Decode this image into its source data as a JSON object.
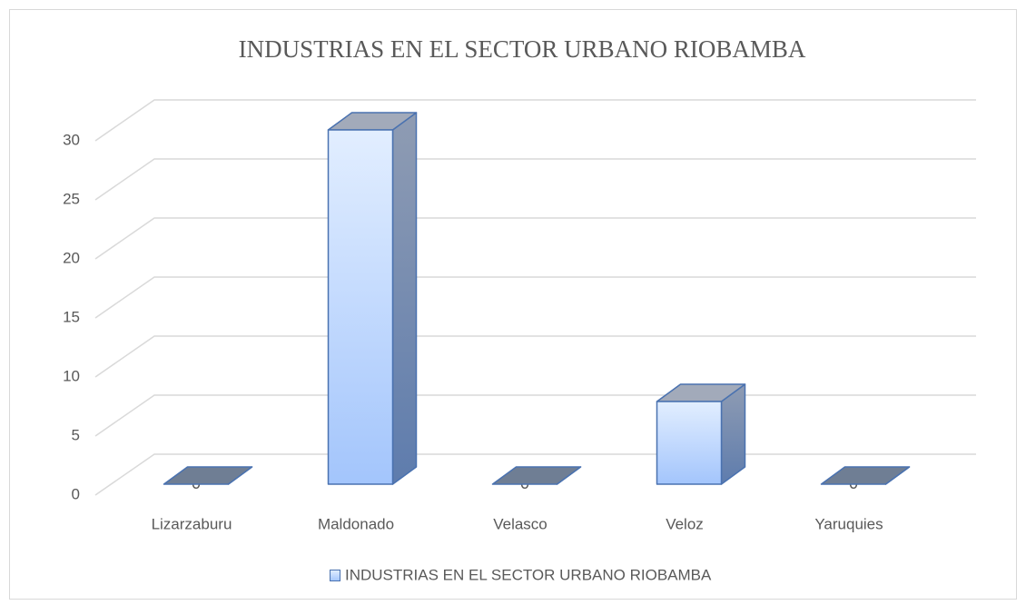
{
  "chart_data": {
    "type": "bar",
    "title": "INDUSTRIAS EN EL SECTOR URBANO RIOBAMBA",
    "categories": [
      "Lizarzaburu",
      "Maldonado",
      "Velasco",
      "Veloz",
      "Yaruquies"
    ],
    "series": [
      {
        "name": "INDUSTRIAS EN EL SECTOR URBANO RIOBAMBA",
        "color": "#a5c8ff",
        "values": [
          0,
          30,
          0,
          7,
          0
        ]
      }
    ],
    "ylim": [
      0,
      30
    ],
    "yticks": [
      0,
      5,
      10,
      15,
      20,
      25,
      30
    ],
    "grid": true,
    "legend": "bottom"
  }
}
